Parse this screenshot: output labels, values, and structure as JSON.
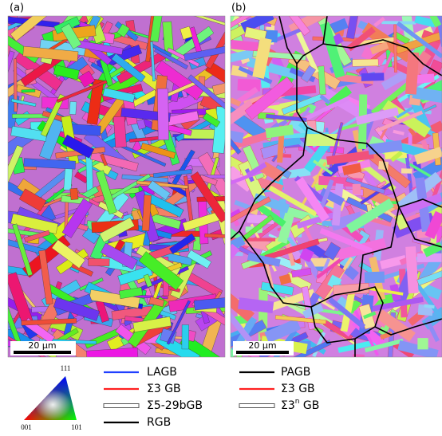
{
  "panels": [
    {
      "label": "(a)",
      "scale_bar": "20 μm"
    },
    {
      "label": "(b)",
      "scale_bar": "20 μm"
    }
  ],
  "ipf_triangle": {
    "top": "111",
    "left": "001",
    "right": "101"
  },
  "legend": {
    "left": [
      {
        "text": "LAGB",
        "color": "#1f3fff",
        "style": "solid"
      },
      {
        "text": "Σ3 GB",
        "color": "#ff2020",
        "style": "solid"
      },
      {
        "text": "Σ5-29bGB",
        "color": "#555555",
        "style": "double"
      },
      {
        "text": "RGB",
        "color": "#000000",
        "style": "solid"
      }
    ],
    "right": [
      {
        "text": "PAGB",
        "color": "#000000",
        "style": "solid"
      },
      {
        "text": "Σ3 GB",
        "color": "#ff2020",
        "style": "solid"
      },
      {
        "text": "Σ3",
        "sup": "n",
        "suffix": " GB",
        "color": "#555555",
        "style": "double"
      }
    ]
  }
}
